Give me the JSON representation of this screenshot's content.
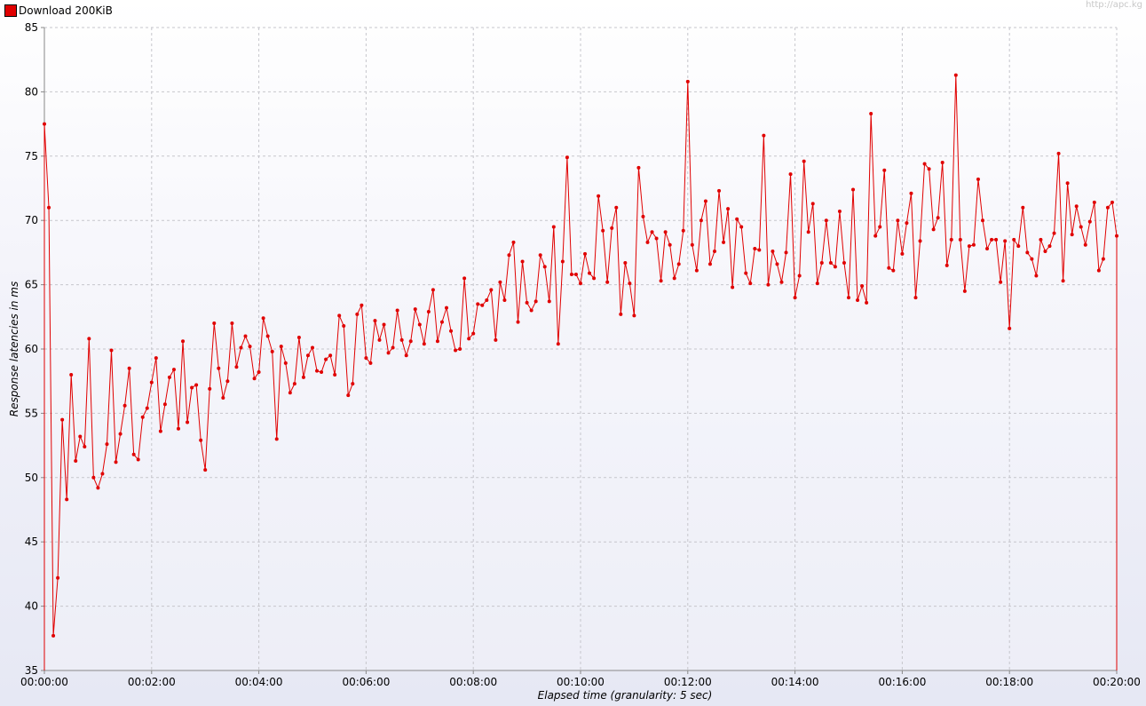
{
  "watermark": "http://apc.kg",
  "chart_data": {
    "type": "line",
    "title": "",
    "xlabel": "Elapsed time (granularity: 5 sec)",
    "ylabel": "Response latencies in ms",
    "ylim": [
      35,
      85
    ],
    "yticks": [
      35,
      40,
      45,
      50,
      55,
      60,
      65,
      70,
      75,
      80,
      85
    ],
    "xlim_seconds": [
      0,
      1200
    ],
    "xticks": [
      "00:00:00",
      "00:02:00",
      "00:04:00",
      "00:06:00",
      "00:08:00",
      "00:10:00",
      "00:12:00",
      "00:14:00",
      "00:16:00",
      "00:18:00",
      "00:20:00"
    ],
    "grid": true,
    "legend_position": "top-left",
    "x_interval_seconds": 5,
    "series": [
      {
        "name": "Download 200KiB",
        "color": "#e00000",
        "values": [
          77.5,
          71.0,
          37.7,
          42.2,
          54.5,
          48.3,
          58.0,
          51.3,
          53.2,
          52.4,
          60.8,
          50.0,
          49.2,
          50.3,
          52.6,
          59.9,
          51.2,
          53.4,
          55.6,
          58.5,
          51.8,
          51.4,
          54.7,
          55.4,
          57.4,
          59.3,
          53.6,
          55.7,
          57.8,
          58.4,
          53.8,
          60.6,
          54.3,
          57.0,
          57.2,
          52.9,
          50.6,
          56.9,
          62.0,
          58.5,
          56.2,
          57.5,
          62.0,
          58.6,
          60.1,
          61.0,
          60.2,
          57.7,
          58.2,
          62.4,
          61.0,
          59.8,
          53.0,
          60.2,
          58.9,
          56.6,
          57.3,
          60.9,
          57.8,
          59.5,
          60.1,
          58.3,
          58.2,
          59.2,
          59.5,
          58.0,
          62.6,
          61.8,
          56.4,
          57.3,
          62.7,
          63.4,
          59.3,
          58.9,
          62.2,
          60.7,
          61.9,
          59.7,
          60.1,
          63.0,
          60.7,
          59.5,
          60.6,
          63.1,
          61.9,
          60.4,
          62.9,
          64.6,
          60.6,
          62.1,
          63.2,
          61.4,
          59.9,
          60.0,
          65.5,
          60.8,
          61.2,
          63.5,
          63.4,
          63.8,
          64.6,
          60.7,
          65.2,
          63.8,
          67.3,
          68.3,
          62.1,
          66.8,
          63.6,
          63.0,
          63.7,
          67.3,
          66.4,
          63.7,
          69.5,
          60.4,
          66.8,
          74.9,
          65.8,
          65.8,
          65.1,
          67.4,
          65.9,
          65.5,
          71.9,
          69.2,
          65.2,
          69.4,
          71.0,
          62.7,
          66.7,
          65.1,
          62.6,
          74.1,
          70.3,
          68.3,
          69.1,
          68.6,
          65.3,
          69.1,
          68.1,
          65.5,
          66.6,
          69.2,
          80.8,
          68.1,
          66.1,
          70.0,
          71.5,
          66.6,
          67.6,
          72.3,
          68.3,
          70.9,
          64.8,
          70.1,
          69.5,
          65.9,
          65.1,
          67.8,
          67.7,
          76.6,
          65.0,
          67.6,
          66.6,
          65.2,
          67.5,
          73.6,
          64.0,
          65.7,
          74.6,
          69.1,
          71.3,
          65.1,
          66.7,
          70.0,
          66.7,
          66.4,
          70.7,
          66.7,
          64.0,
          72.4,
          63.8,
          64.9,
          63.6,
          78.3,
          68.8,
          69.5,
          73.9,
          66.3,
          66.1,
          70.0,
          67.4,
          69.8,
          72.1,
          64.0,
          68.4,
          74.4,
          74.0,
          69.3,
          70.2,
          74.5,
          66.5,
          68.5,
          81.3,
          68.5,
          64.5,
          68.0,
          68.1,
          73.2,
          70.0,
          67.8,
          68.5,
          68.5,
          65.2,
          68.4,
          61.6,
          68.5,
          68.0,
          71.0,
          67.5,
          67.0,
          65.7,
          68.5,
          67.6,
          68.0,
          69.0,
          75.2,
          65.3,
          72.9,
          68.9,
          71.1,
          69.5,
          68.1,
          69.9,
          71.4,
          66.1,
          67.0,
          71.0,
          71.4,
          68.8
        ]
      }
    ]
  }
}
